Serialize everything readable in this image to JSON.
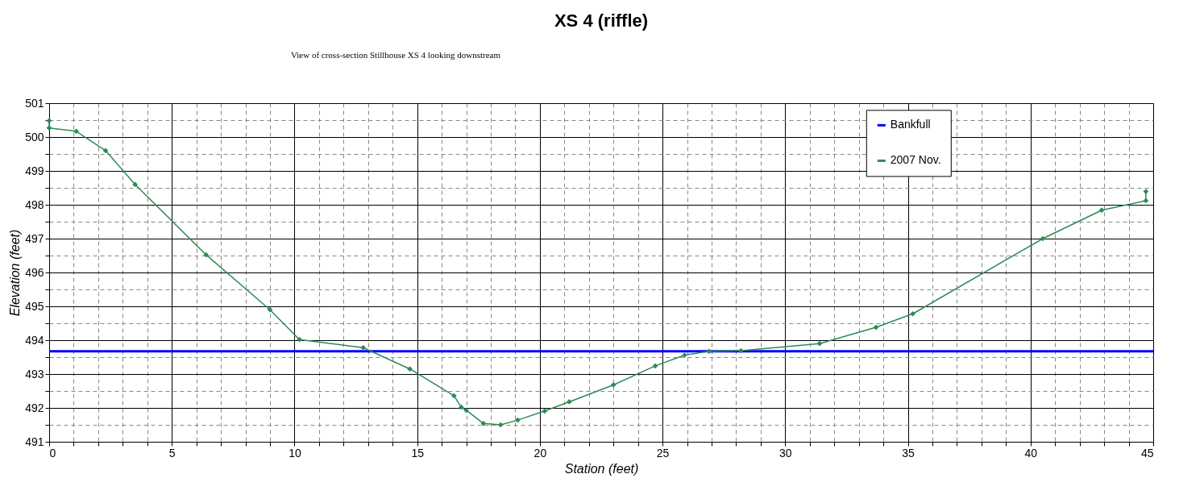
{
  "chart_data": {
    "type": "line",
    "title": "XS 4 (riffle)",
    "xlabel": "Station (feet)",
    "ylabel": "Elevation (feet)",
    "annotations": [
      "View of cross-section Stillhouse XS 4 looking downstream"
    ],
    "xlim": [
      0,
      45
    ],
    "ylim": [
      491,
      501
    ],
    "xticks": [
      0,
      {
        "value": 1,
        "label": null
      },
      {
        "value": 2,
        "label": null
      },
      {
        "value": 3,
        "label": null
      },
      {
        "value": 4,
        "label": null
      },
      5,
      {
        "value": 6,
        "label": null
      },
      {
        "value": 7,
        "label": null
      },
      {
        "value": 8,
        "label": null
      },
      {
        "value": 9,
        "label": null
      },
      10,
      {
        "value": 11,
        "label": null
      },
      {
        "value": 12,
        "label": null
      },
      {
        "value": 13,
        "label": null
      },
      {
        "value": 14,
        "label": null
      },
      15,
      {
        "value": 16,
        "label": null
      },
      {
        "value": 17,
        "label": null
      },
      {
        "value": 18,
        "label": null
      },
      {
        "value": 19,
        "label": null
      },
      20,
      {
        "value": 21,
        "label": null
      },
      {
        "value": 22,
        "label": null
      },
      {
        "value": 23,
        "label": null
      },
      {
        "value": 24,
        "label": null
      },
      25,
      {
        "value": 26,
        "label": null
      },
      {
        "value": 27,
        "label": null
      },
      {
        "value": 28,
        "label": null
      },
      {
        "value": 29,
        "label": null
      },
      30,
      {
        "value": 31,
        "label": null
      },
      {
        "value": 32,
        "label": null
      },
      {
        "value": 33,
        "label": null
      },
      {
        "value": 34,
        "label": null
      },
      35,
      {
        "value": 36,
        "label": null
      },
      {
        "value": 37,
        "label": null
      },
      {
        "value": 38,
        "label": null
      },
      {
        "value": 39,
        "label": null
      },
      40,
      {
        "value": 41,
        "label": null
      },
      {
        "value": 42,
        "label": null
      },
      {
        "value": 43,
        "label": null
      },
      {
        "value": 44,
        "label": null
      },
      45
    ],
    "yticks": [
      491,
      {
        "value": 491.5,
        "label": null
      },
      492,
      {
        "value": 492.5,
        "label": null
      },
      493,
      {
        "value": 493.5,
        "label": null
      },
      494,
      {
        "value": 494.5,
        "label": null
      },
      495,
      {
        "value": 495.5,
        "label": null
      },
      496,
      {
        "value": 496.5,
        "label": null
      },
      497,
      {
        "value": 497.5,
        "label": null
      },
      498,
      {
        "value": 498.5,
        "label": null
      },
      499,
      {
        "value": 499.5,
        "label": null
      },
      500,
      {
        "value": 500.5,
        "label": null
      },
      501
    ],
    "grid": true,
    "legend": "top right",
    "series": [
      {
        "name": "Bankfull",
        "color": "#0000ff",
        "marker": "none",
        "x": [
          0,
          45
        ],
        "values": [
          493.67,
          493.67
        ]
      },
      {
        "name": "2007 Nov.",
        "color": "#2e8b57",
        "marker": "diamond",
        "x": [
          0,
          0,
          1.1,
          2.3,
          3.5,
          6.4,
          9.0,
          10.2,
          12.8,
          14.7,
          16.5,
          16.8,
          17.0,
          17.7,
          18.4,
          19.1,
          20.2,
          21.2,
          23.0,
          24.7,
          25.9,
          26.9,
          28.2,
          31.4,
          33.7,
          35.2,
          40.5,
          42.9,
          44.7,
          44.7
        ],
        "values": [
          500.48,
          500.27,
          500.17,
          499.6,
          498.6,
          496.52,
          494.9,
          494.02,
          493.78,
          493.15,
          492.36,
          492.02,
          491.93,
          491.54,
          491.5,
          491.64,
          491.91,
          492.18,
          492.68,
          493.24,
          493.56,
          493.67,
          493.69,
          493.9,
          494.38,
          494.78,
          497.0,
          497.84,
          498.12,
          498.39
        ]
      }
    ]
  }
}
